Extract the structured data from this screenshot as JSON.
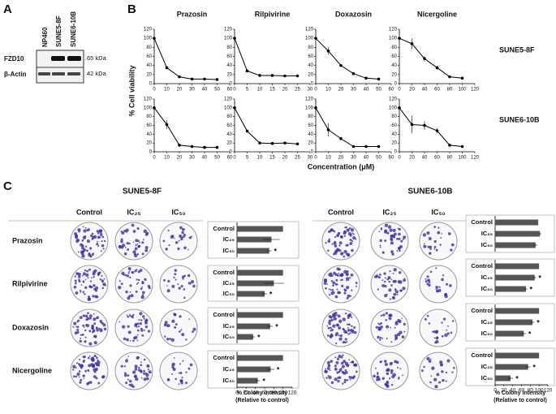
{
  "panel_labels": [
    "A",
    "B",
    "C"
  ],
  "blot": {
    "lanes": [
      "NP460",
      "SUNE5-8F",
      "SUNE6-10B"
    ],
    "proteins": [
      "FZD10",
      "β-Actin"
    ],
    "sizes": [
      "65 kDa",
      "42 kDa"
    ]
  },
  "panel_b": {
    "y_label": "% Cell viability",
    "x_label": "Concentration (μM)",
    "row_labels": [
      "SUNE5-8F",
      "SUNE6-10B"
    ]
  },
  "panel_c": {
    "blocks": [
      {
        "title": "SUNE5-8F",
        "columns": [
          "Control",
          "IC₂₅",
          "IC₅₀"
        ]
      },
      {
        "title": "SUNE6-10B",
        "columns": [
          "Control",
          "IC₂₅",
          "IC₅₀"
        ]
      }
    ],
    "rows": [
      "Prazosin",
      "Rilpivirine",
      "Doxazosin",
      "Nicergoline"
    ],
    "x_label": [
      "% Colony intensity",
      "(Relative to control)"
    ]
  },
  "chart_data": [
    {
      "type": "line",
      "title": "Prazosin",
      "x": [
        0,
        10,
        20,
        30,
        40,
        50
      ],
      "values": [
        100,
        35,
        15,
        10,
        10,
        9
      ],
      "errors": [
        0,
        3,
        2,
        1,
        1,
        1
      ],
      "xlim": [
        0,
        60
      ],
      "xticks": [
        0,
        10,
        20,
        30,
        40,
        50,
        60
      ],
      "ylim": [
        0,
        120
      ],
      "yticks": [
        0,
        20,
        40,
        60,
        80,
        100,
        120
      ],
      "color": "#000000"
    },
    {
      "type": "line",
      "title": "Rilpivirine",
      "x": [
        0,
        5,
        10,
        15,
        20,
        25
      ],
      "values": [
        100,
        28,
        18,
        18,
        17,
        17
      ],
      "errors": [
        0,
        3,
        2,
        2,
        2,
        2
      ],
      "xlim": [
        0,
        30
      ],
      "xticks": [
        0,
        5,
        10,
        15,
        20,
        25,
        30
      ],
      "ylim": [
        0,
        120
      ],
      "yticks": [
        0,
        20,
        40,
        60,
        80,
        100,
        120
      ],
      "color": "#000000"
    },
    {
      "type": "line",
      "title": "Doxazosin",
      "x": [
        0,
        10,
        20,
        30,
        40,
        50
      ],
      "values": [
        100,
        72,
        40,
        22,
        12,
        10
      ],
      "errors": [
        0,
        8,
        3,
        2,
        2,
        1
      ],
      "xlim": [
        0,
        60
      ],
      "xticks": [
        0,
        10,
        20,
        30,
        40,
        50,
        60
      ],
      "ylim": [
        0,
        120
      ],
      "yticks": [
        0,
        20,
        40,
        60,
        80,
        100,
        120
      ],
      "color": "#000000"
    },
    {
      "type": "line",
      "title": "Nicergoline",
      "x": [
        0,
        20,
        40,
        60,
        80,
        100
      ],
      "values": [
        100,
        88,
        55,
        35,
        15,
        12
      ],
      "errors": [
        0,
        12,
        6,
        4,
        2,
        2
      ],
      "xlim": [
        0,
        120
      ],
      "xticks": [
        0,
        20,
        40,
        60,
        80,
        100,
        120
      ],
      "ylim": [
        0,
        120
      ],
      "yticks": [
        0,
        20,
        40,
        60,
        80,
        100,
        120
      ],
      "color": "#000000"
    },
    {
      "type": "line",
      "x": [
        0,
        10,
        20,
        30,
        40,
        50
      ],
      "values": [
        100,
        62,
        15,
        12,
        10,
        10
      ],
      "errors": [
        0,
        10,
        3,
        2,
        2,
        2
      ],
      "xlim": [
        0,
        60
      ],
      "xticks": [
        0,
        10,
        20,
        30,
        40,
        50,
        60
      ],
      "ylim": [
        0,
        120
      ],
      "yticks": [
        0,
        20,
        40,
        60,
        80,
        100,
        120
      ],
      "color": "#000000"
    },
    {
      "type": "line",
      "x": [
        0,
        5,
        10,
        15,
        20,
        25
      ],
      "values": [
        100,
        47,
        20,
        19,
        20,
        18
      ],
      "errors": [
        0,
        3,
        2,
        2,
        2,
        2
      ],
      "xlim": [
        0,
        30
      ],
      "xticks": [
        0,
        5,
        10,
        15,
        20,
        25,
        30
      ],
      "ylim": [
        0,
        120
      ],
      "yticks": [
        0,
        20,
        40,
        60,
        80,
        100,
        120
      ],
      "color": "#000000"
    },
    {
      "type": "line",
      "x": [
        0,
        10,
        20,
        30,
        40,
        50
      ],
      "values": [
        100,
        50,
        30,
        12,
        12,
        12
      ],
      "errors": [
        0,
        15,
        4,
        2,
        2,
        2
      ],
      "xlim": [
        0,
        60
      ],
      "xticks": [
        0,
        10,
        20,
        30,
        40,
        50,
        60
      ],
      "ylim": [
        0,
        120
      ],
      "yticks": [
        0,
        20,
        40,
        60,
        80,
        100,
        120
      ],
      "color": "#000000"
    },
    {
      "type": "line",
      "x": [
        0,
        20,
        40,
        60,
        80,
        100
      ],
      "values": [
        100,
        62,
        60,
        48,
        15,
        12
      ],
      "errors": [
        0,
        20,
        10,
        6,
        3,
        2
      ],
      "xlim": [
        0,
        120
      ],
      "xticks": [
        0,
        20,
        40,
        60,
        80,
        100,
        120
      ],
      "ylim": [
        0,
        120
      ],
      "yticks": [
        0,
        20,
        40,
        60,
        80,
        100,
        120
      ],
      "color": "#000000"
    },
    {
      "type": "hbar",
      "categories": [
        "Control",
        "IC₂₅",
        "IC₅₀"
      ],
      "values": [
        100,
        75,
        70
      ],
      "errors": [
        0,
        18,
        5
      ],
      "significance": [
        null,
        null,
        "*"
      ],
      "xlim": [
        0,
        120
      ],
      "color": "#555555"
    },
    {
      "type": "hbar",
      "categories": [
        "Control",
        "IC₂₅",
        "IC₅₀"
      ],
      "values": [
        100,
        80,
        60
      ],
      "errors": [
        0,
        22,
        5
      ],
      "significance": [
        null,
        null,
        "*"
      ],
      "xlim": [
        0,
        120
      ],
      "color": "#555555"
    },
    {
      "type": "hbar",
      "categories": [
        "Control",
        "IC₂₅",
        "IC₅₀"
      ],
      "values": [
        100,
        72,
        35
      ],
      "errors": [
        0,
        6,
        4
      ],
      "significance": [
        null,
        "*",
        "*"
      ],
      "xlim": [
        0,
        120
      ],
      "color": "#555555"
    },
    {
      "type": "hbar",
      "categories": [
        "Control",
        "IC₂₅",
        "IC₅₀"
      ],
      "values": [
        100,
        73,
        45
      ],
      "errors": [
        0,
        8,
        5
      ],
      "significance": [
        null,
        "*",
        "*"
      ],
      "xlim": [
        0,
        120
      ],
      "xticks": [
        0,
        20,
        40,
        60,
        80,
        100,
        120
      ],
      "color": "#555555"
    },
    {
      "type": "hbar",
      "categories": [
        "Control",
        "IC₂₅",
        "IC₅₀"
      ],
      "values": [
        98,
        102,
        92
      ],
      "errors": [
        0,
        3,
        4
      ],
      "significance": [
        null,
        null,
        null
      ],
      "xlim": [
        0,
        120
      ],
      "color": "#555555"
    },
    {
      "type": "hbar",
      "categories": [
        "Control",
        "IC₂₅",
        "IC₅₀"
      ],
      "values": [
        100,
        90,
        70
      ],
      "errors": [
        0,
        3,
        3
      ],
      "significance": [
        null,
        "*",
        "*"
      ],
      "xlim": [
        0,
        120
      ],
      "color": "#555555"
    },
    {
      "type": "hbar",
      "categories": [
        "Control",
        "IC₂₅",
        "IC₅₀"
      ],
      "values": [
        100,
        85,
        65
      ],
      "errors": [
        0,
        4,
        5
      ],
      "significance": [
        null,
        "*",
        "*"
      ],
      "xlim": [
        0,
        120
      ],
      "color": "#555555"
    },
    {
      "type": "hbar",
      "categories": [
        "Control",
        "IC₂₅",
        "IC₅₀"
      ],
      "values": [
        100,
        75,
        35
      ],
      "errors": [
        0,
        5,
        6
      ],
      "significance": [
        null,
        "*",
        "*"
      ],
      "xlim": [
        0,
        120
      ],
      "xticks": [
        0,
        20,
        40,
        60,
        80,
        100,
        120
      ],
      "color": "#555555"
    }
  ]
}
